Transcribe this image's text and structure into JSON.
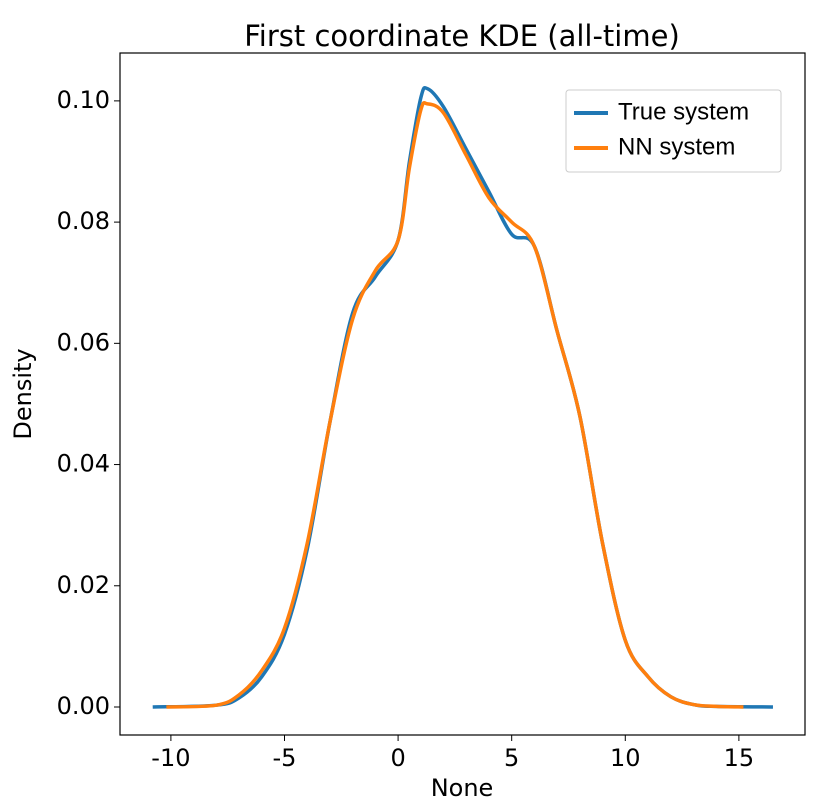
{
  "chart_data": {
    "type": "line",
    "title": "First coordinate KDE (all-time)",
    "x_label": "None",
    "y_label": "Density",
    "xlim": [
      -12.24,
      17.91
    ],
    "ylim": [
      -0.00462,
      0.1079
    ],
    "xticks": [
      -10,
      -5,
      0,
      5,
      10,
      15
    ],
    "yticks": [
      {
        "value": 0,
        "label": "0.00"
      },
      {
        "value": 0.02,
        "label": "0.02"
      },
      {
        "value": 0.04,
        "label": "0.04"
      },
      {
        "value": 0.06,
        "label": "0.06"
      },
      {
        "value": 0.08,
        "label": "0.08"
      },
      {
        "value": 0.1,
        "label": "0.10"
      }
    ],
    "legend": "upper right",
    "series": [
      {
        "name": "True system",
        "color": "#1f77b4",
        "x": [
          -10.8,
          -8,
          -7,
          -6,
          -5,
          -4,
          -3,
          -2,
          -1,
          0,
          0.5,
          1,
          1.3,
          2,
          3,
          4,
          5,
          6,
          7,
          8,
          9,
          10,
          11,
          12,
          13,
          14,
          16.5
        ],
        "values": [
          0,
          0.0003,
          0.0015,
          0.005,
          0.012,
          0.026,
          0.047,
          0.065,
          0.071,
          0.077,
          0.09,
          0.1005,
          0.102,
          0.099,
          0.092,
          0.085,
          0.078,
          0.076,
          0.062,
          0.048,
          0.027,
          0.011,
          0.005,
          0.0017,
          0.0004,
          0.0001,
          0
        ]
      },
      {
        "name": "NN system",
        "color": "#ff7f0e",
        "x": [
          -10.2,
          -8,
          -7,
          -6,
          -5,
          -4,
          -3,
          -2,
          -1,
          0,
          0.5,
          1,
          1.3,
          2,
          3,
          4,
          5,
          6,
          7,
          8,
          9,
          10,
          11,
          12,
          13,
          14,
          15.2
        ],
        "values": [
          0,
          0.0003,
          0.002,
          0.006,
          0.013,
          0.027,
          0.047,
          0.064,
          0.072,
          0.077,
          0.089,
          0.0985,
          0.0995,
          0.098,
          0.091,
          0.084,
          0.08,
          0.076,
          0.062,
          0.048,
          0.027,
          0.011,
          0.005,
          0.0017,
          0.0004,
          0.0001,
          0
        ]
      }
    ]
  }
}
